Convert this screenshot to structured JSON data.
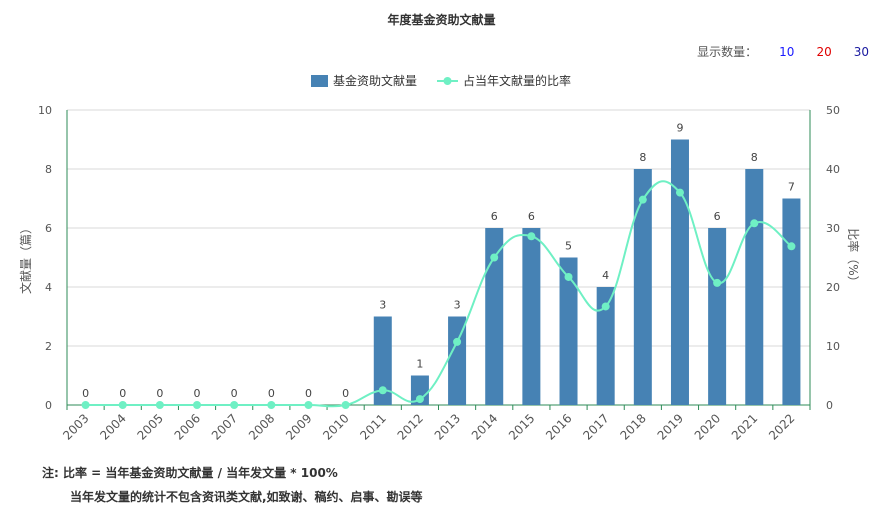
{
  "chart_data": {
    "type": "bar",
    "title": "年度基金资助文献量",
    "categories": [
      "2003",
      "2004",
      "2005",
      "2006",
      "2007",
      "2008",
      "2009",
      "2010",
      "2011",
      "2012",
      "2013",
      "2014",
      "2015",
      "2016",
      "2017",
      "2018",
      "2019",
      "2020",
      "2021",
      "2022"
    ],
    "series": [
      {
        "name": "基金资助文献量",
        "type": "bar",
        "axis": "left",
        "color": "#4682b4",
        "values": [
          0,
          0,
          0,
          0,
          0,
          0,
          0,
          0,
          3,
          1,
          3,
          6,
          6,
          5,
          4,
          8,
          9,
          6,
          8,
          7
        ]
      },
      {
        "name": "占当年文献量的比率",
        "type": "line",
        "axis": "right",
        "color": "#6ff0c4",
        "values": [
          0,
          0,
          0,
          0,
          0,
          0,
          0,
          0,
          2.5,
          1,
          10.7,
          25,
          28.6,
          21.7,
          16.7,
          34.8,
          36,
          20.7,
          30.8,
          26.9
        ]
      }
    ],
    "ylabel": "文献量（篇）",
    "ylabel_right": "比率（%）",
    "ylim": [
      0,
      10
    ],
    "yticks": [
      "0",
      "2",
      "4",
      "6",
      "8",
      "10"
    ],
    "ylim_right": [
      0,
      50
    ],
    "yticks_right": [
      "0",
      "10",
      "20",
      "30",
      "40",
      "50"
    ],
    "grid": true,
    "legend": "top-center",
    "data_labels": true
  },
  "display_count": {
    "label": "显示数量：",
    "options": [
      {
        "text": "10",
        "color": "#1a1aff"
      },
      {
        "text": "20",
        "color": "#e00000"
      },
      {
        "text": "30",
        "color": "#1a1aa0"
      }
    ]
  },
  "notes": {
    "line1": "注:  比率 = 当年基金资助文献量 / 当年发文量 * 100%",
    "line2": "当年发文量的统计不包含资讯类文献,如致谢、稿约、启事、勘误等"
  }
}
